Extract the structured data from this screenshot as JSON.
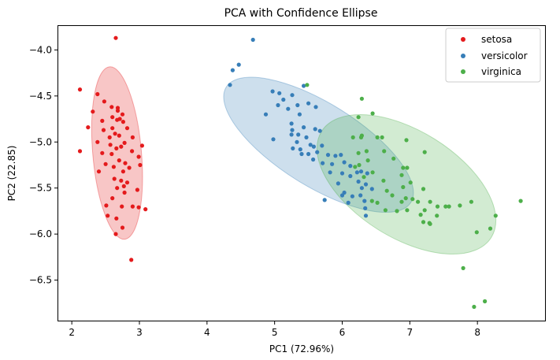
{
  "chart_data": {
    "type": "scatter",
    "title": "PCA with Confidence Ellipse",
    "xlabel": "PC1 (72.96%)",
    "ylabel": "PC2 (22.85)",
    "xlim": [
      1.8,
      9.0
    ],
    "ylim": [
      -6.94,
      -3.74
    ],
    "xticks": [
      2,
      3,
      4,
      5,
      6,
      7,
      8
    ],
    "yticks": [
      -4.0,
      -4.5,
      -5.0,
      -5.5,
      -6.0,
      -6.5
    ],
    "xtick_labels": [
      "2",
      "3",
      "4",
      "5",
      "6",
      "7",
      "8"
    ],
    "ytick_labels": [
      "−4.0",
      "−4.5",
      "−5.0",
      "−5.5",
      "−6.0",
      "−6.5"
    ],
    "grid": false,
    "legend_position": "top-right",
    "series": [
      {
        "name": "setosa",
        "color": "#e41a1c",
        "ellipse": {
          "cx": 2.67,
          "cy": -5.12,
          "rx": 0.36,
          "ry": 0.94,
          "angle": -5
        },
        "points": [
          [
            2.65,
            -3.87
          ],
          [
            2.12,
            -4.43
          ],
          [
            2.24,
            -4.84
          ],
          [
            2.12,
            -5.1
          ],
          [
            2.31,
            -4.67
          ],
          [
            2.38,
            -4.48
          ],
          [
            2.48,
            -4.56
          ],
          [
            2.59,
            -4.62
          ],
          [
            2.68,
            -4.63
          ],
          [
            2.6,
            -4.73
          ],
          [
            2.68,
            -4.66
          ],
          [
            2.75,
            -4.7
          ],
          [
            2.45,
            -4.77
          ],
          [
            2.6,
            -4.85
          ],
          [
            2.67,
            -4.76
          ],
          [
            2.71,
            -4.75
          ],
          [
            2.76,
            -4.78
          ],
          [
            2.82,
            -4.85
          ],
          [
            2.47,
            -4.87
          ],
          [
            2.56,
            -4.95
          ],
          [
            2.64,
            -4.91
          ],
          [
            2.7,
            -4.93
          ],
          [
            2.78,
            -5.01
          ],
          [
            2.9,
            -4.95
          ],
          [
            2.38,
            -5.0
          ],
          [
            2.57,
            -5.03
          ],
          [
            2.66,
            -5.07
          ],
          [
            2.73,
            -5.05
          ],
          [
            2.89,
            -5.1
          ],
          [
            3.04,
            -5.04
          ],
          [
            2.45,
            -5.12
          ],
          [
            2.59,
            -5.13
          ],
          [
            2.7,
            -5.2
          ],
          [
            2.79,
            -5.23
          ],
          [
            2.99,
            -5.16
          ],
          [
            2.5,
            -5.24
          ],
          [
            2.62,
            -5.27
          ],
          [
            2.76,
            -5.32
          ],
          [
            2.85,
            -5.28
          ],
          [
            3.01,
            -5.25
          ],
          [
            2.4,
            -5.32
          ],
          [
            2.63,
            -5.4
          ],
          [
            2.73,
            -5.42
          ],
          [
            2.82,
            -5.44
          ],
          [
            2.67,
            -5.5
          ],
          [
            2.77,
            -5.48
          ],
          [
            2.97,
            -5.52
          ],
          [
            2.78,
            -5.55
          ],
          [
            2.6,
            -5.61
          ],
          [
            2.74,
            -5.7
          ],
          [
            2.51,
            -5.69
          ],
          [
            2.9,
            -5.7
          ],
          [
            2.99,
            -5.71
          ],
          [
            3.09,
            -5.73
          ],
          [
            2.53,
            -5.8
          ],
          [
            2.66,
            -5.83
          ],
          [
            2.75,
            -5.93
          ],
          [
            2.65,
            -6.0
          ],
          [
            2.88,
            -6.28
          ]
        ]
      },
      {
        "name": "versicolor",
        "color": "#377eb8",
        "ellipse": {
          "cx": 5.65,
          "cy": -5.03,
          "rx": 1.61,
          "ry": 0.45,
          "angle": 32
        },
        "points": [
          [
            4.68,
            -3.89
          ],
          [
            4.47,
            -4.16
          ],
          [
            4.38,
            -4.22
          ],
          [
            4.34,
            -4.38
          ],
          [
            5.43,
            -4.39
          ],
          [
            4.97,
            -4.45
          ],
          [
            5.07,
            -4.47
          ],
          [
            5.13,
            -4.54
          ],
          [
            5.26,
            -4.49
          ],
          [
            5.05,
            -4.6
          ],
          [
            5.2,
            -4.64
          ],
          [
            5.34,
            -4.6
          ],
          [
            5.5,
            -4.58
          ],
          [
            5.61,
            -4.62
          ],
          [
            5.37,
            -4.7
          ],
          [
            4.87,
            -4.7
          ],
          [
            5.25,
            -4.8
          ],
          [
            5.43,
            -4.84
          ],
          [
            5.6,
            -4.86
          ],
          [
            5.67,
            -4.88
          ],
          [
            5.26,
            -4.87
          ],
          [
            5.25,
            -4.92
          ],
          [
            5.35,
            -4.92
          ],
          [
            5.47,
            -4.95
          ],
          [
            5.33,
            -5.0
          ],
          [
            4.98,
            -4.97
          ],
          [
            5.53,
            -5.03
          ],
          [
            5.58,
            -5.05
          ],
          [
            5.7,
            -5.04
          ],
          [
            5.38,
            -5.08
          ],
          [
            5.27,
            -5.07
          ],
          [
            5.4,
            -5.13
          ],
          [
            5.5,
            -5.13
          ],
          [
            5.63,
            -5.11
          ],
          [
            5.79,
            -5.14
          ],
          [
            5.9,
            -5.15
          ],
          [
            5.98,
            -5.14
          ],
          [
            5.57,
            -5.19
          ],
          [
            5.71,
            -5.23
          ],
          [
            5.85,
            -5.24
          ],
          [
            6.03,
            -5.22
          ],
          [
            6.12,
            -5.26
          ],
          [
            5.82,
            -5.33
          ],
          [
            6.0,
            -5.34
          ],
          [
            6.12,
            -5.37
          ],
          [
            6.22,
            -5.33
          ],
          [
            6.28,
            -5.32
          ],
          [
            6.37,
            -5.34
          ],
          [
            5.94,
            -5.45
          ],
          [
            6.24,
            -5.43
          ],
          [
            6.35,
            -5.46
          ],
          [
            6.03,
            -5.55
          ],
          [
            6.29,
            -5.5
          ],
          [
            6.44,
            -5.51
          ],
          [
            6.0,
            -5.58
          ],
          [
            6.15,
            -5.59
          ],
          [
            6.27,
            -5.58
          ],
          [
            6.33,
            -5.64
          ],
          [
            5.74,
            -5.63
          ],
          [
            6.09,
            -5.66
          ],
          [
            6.34,
            -5.72
          ],
          [
            6.35,
            -5.8
          ]
        ]
      },
      {
        "name": "virginica",
        "color": "#4daf4a",
        "ellipse": {
          "cx": 6.95,
          "cy": -5.46,
          "rx": 1.48,
          "ry": 0.58,
          "angle": 32
        },
        "points": [
          [
            5.48,
            -4.38
          ],
          [
            6.29,
            -4.53
          ],
          [
            6.24,
            -4.73
          ],
          [
            6.45,
            -4.69
          ],
          [
            6.29,
            -4.93
          ],
          [
            6.16,
            -4.95
          ],
          [
            6.28,
            -4.95
          ],
          [
            6.52,
            -4.95
          ],
          [
            6.59,
            -4.95
          ],
          [
            6.62,
            -5.1
          ],
          [
            6.95,
            -4.98
          ],
          [
            7.22,
            -5.11
          ],
          [
            6.24,
            -5.12
          ],
          [
            6.36,
            -5.1
          ],
          [
            6.76,
            -5.18
          ],
          [
            6.25,
            -5.25
          ],
          [
            6.19,
            -5.27
          ],
          [
            6.38,
            -5.2
          ],
          [
            6.9,
            -5.28
          ],
          [
            6.96,
            -5.28
          ],
          [
            6.32,
            -5.38
          ],
          [
            6.45,
            -5.33
          ],
          [
            6.61,
            -5.42
          ],
          [
            6.88,
            -5.36
          ],
          [
            7.01,
            -5.44
          ],
          [
            7.2,
            -5.51
          ],
          [
            6.66,
            -5.53
          ],
          [
            6.9,
            -5.49
          ],
          [
            6.74,
            -5.58
          ],
          [
            6.44,
            -5.64
          ],
          [
            6.52,
            -5.66
          ],
          [
            6.88,
            -5.65
          ],
          [
            6.94,
            -5.61
          ],
          [
            7.04,
            -5.62
          ],
          [
            7.12,
            -5.65
          ],
          [
            7.3,
            -5.65
          ],
          [
            7.41,
            -5.7
          ],
          [
            7.53,
            -5.7
          ],
          [
            7.58,
            -5.7
          ],
          [
            7.74,
            -5.69
          ],
          [
            6.64,
            -5.74
          ],
          [
            6.81,
            -5.75
          ],
          [
            6.96,
            -5.74
          ],
          [
            7.22,
            -5.74
          ],
          [
            7.16,
            -5.79
          ],
          [
            7.2,
            -5.87
          ],
          [
            7.4,
            -5.8
          ],
          [
            7.29,
            -5.88
          ],
          [
            7.3,
            -5.89
          ],
          [
            7.91,
            -5.65
          ],
          [
            8.27,
            -5.8
          ],
          [
            8.64,
            -5.64
          ],
          [
            8.19,
            -5.94
          ],
          [
            7.99,
            -5.98
          ],
          [
            7.79,
            -6.37
          ],
          [
            8.11,
            -6.73
          ],
          [
            7.95,
            -6.79
          ]
        ]
      }
    ]
  }
}
